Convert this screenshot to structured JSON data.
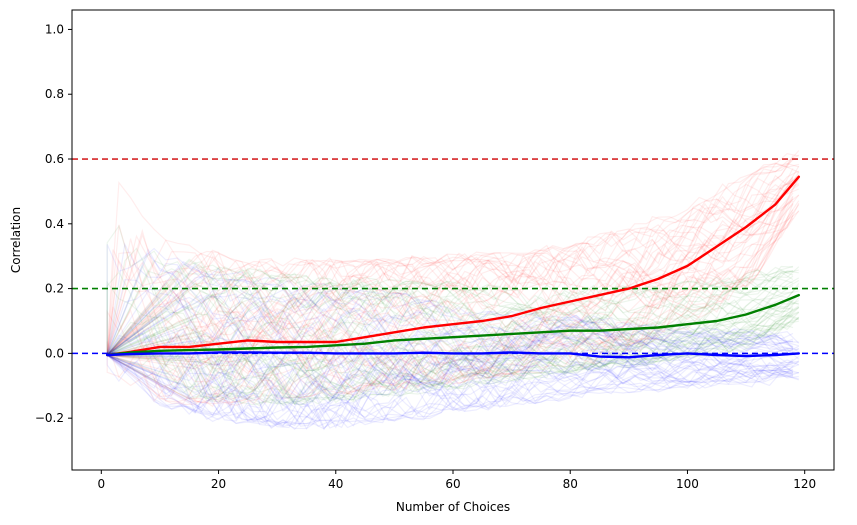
{
  "chart_data": {
    "type": "line",
    "title": "",
    "xlabel": "Number of Choices",
    "ylabel": "Correlation",
    "xlim": [
      -5,
      125
    ],
    "ylim": [
      -0.36,
      1.06
    ],
    "xticks": [
      0,
      20,
      40,
      60,
      80,
      100,
      120
    ],
    "yticks": [
      -0.2,
      0.0,
      0.2,
      0.4,
      0.6,
      0.8,
      1.0
    ],
    "ytick_labels": [
      "−0.2",
      "0.0",
      "0.2",
      "0.4",
      "0.6",
      "0.8",
      "1.0"
    ],
    "grid": false,
    "legend": "none",
    "reference_lines": [
      {
        "y": 0.6,
        "color": "#d62728",
        "style": "dashed"
      },
      {
        "y": 0.2,
        "color": "#008000",
        "style": "dashed"
      },
      {
        "y": 0.0,
        "color": "#0000ff",
        "style": "dashed"
      }
    ],
    "series": [
      {
        "color": "#ff0000",
        "x": [
          1,
          5,
          10,
          15,
          20,
          25,
          30,
          35,
          40,
          45,
          50,
          55,
          60,
          65,
          70,
          75,
          80,
          85,
          90,
          95,
          100,
          105,
          110,
          115,
          119
        ],
        "values": [
          -0.005,
          0.005,
          0.02,
          0.02,
          0.03,
          0.04,
          0.035,
          0.035,
          0.035,
          0.05,
          0.065,
          0.08,
          0.09,
          0.1,
          0.115,
          0.14,
          0.16,
          0.18,
          0.2,
          0.23,
          0.27,
          0.33,
          0.39,
          0.46,
          0.545
        ]
      },
      {
        "color": "#008000",
        "x": [
          1,
          5,
          10,
          15,
          20,
          25,
          30,
          35,
          40,
          45,
          50,
          55,
          60,
          65,
          70,
          75,
          80,
          85,
          90,
          95,
          100,
          105,
          110,
          115,
          119
        ],
        "values": [
          -0.005,
          0.003,
          0.008,
          0.01,
          0.012,
          0.015,
          0.018,
          0.02,
          0.025,
          0.03,
          0.04,
          0.045,
          0.05,
          0.055,
          0.06,
          0.065,
          0.07,
          0.07,
          0.075,
          0.08,
          0.09,
          0.1,
          0.12,
          0.15,
          0.18
        ]
      },
      {
        "color": "#0000ff",
        "x": [
          1,
          5,
          10,
          15,
          20,
          25,
          30,
          35,
          40,
          45,
          50,
          55,
          60,
          65,
          70,
          75,
          80,
          85,
          90,
          95,
          100,
          105,
          110,
          115,
          119
        ],
        "values": [
          -0.005,
          -0.002,
          0.0,
          0.0,
          0.003,
          0.003,
          0.002,
          0.002,
          0.0,
          0.0,
          0.0,
          0.002,
          0.0,
          0.0,
          0.003,
          0.0,
          0.0,
          -0.01,
          -0.012,
          -0.005,
          0.0,
          -0.005,
          -0.008,
          -0.005,
          0.0
        ]
      }
    ],
    "noise_bands": [
      {
        "color": "#ff0000",
        "x": [
          1,
          10,
          20,
          30,
          40,
          50,
          60,
          70,
          80,
          90,
          100,
          110,
          119
        ],
        "lower": [
          -0.05,
          -0.15,
          -0.15,
          -0.14,
          -0.12,
          -0.1,
          -0.08,
          -0.06,
          -0.04,
          0.0,
          0.08,
          0.2,
          0.45
        ],
        "upper": [
          0.6,
          0.35,
          0.3,
          0.28,
          0.28,
          0.28,
          0.3,
          0.3,
          0.33,
          0.38,
          0.45,
          0.55,
          0.62
        ]
      },
      {
        "color": "#008000",
        "x": [
          1,
          10,
          20,
          30,
          40,
          50,
          60,
          70,
          80,
          90,
          100,
          110,
          119
        ],
        "lower": [
          -0.05,
          -0.12,
          -0.14,
          -0.15,
          -0.14,
          -0.12,
          -0.1,
          -0.08,
          -0.05,
          -0.03,
          -0.01,
          0.02,
          0.1
        ],
        "upper": [
          0.45,
          0.3,
          0.26,
          0.24,
          0.22,
          0.22,
          0.21,
          0.2,
          0.2,
          0.2,
          0.22,
          0.24,
          0.26
        ]
      },
      {
        "color": "#0000ff",
        "x": [
          1,
          10,
          20,
          30,
          40,
          50,
          60,
          70,
          80,
          90,
          100,
          110,
          119
        ],
        "lower": [
          -0.05,
          -0.15,
          -0.2,
          -0.22,
          -0.22,
          -0.2,
          -0.18,
          -0.15,
          -0.13,
          -0.11,
          -0.1,
          -0.09,
          -0.08
        ],
        "upper": [
          0.4,
          0.3,
          0.25,
          0.22,
          0.2,
          0.18,
          0.15,
          0.13,
          0.11,
          0.09,
          0.07,
          0.06,
          0.05
        ]
      }
    ]
  }
}
